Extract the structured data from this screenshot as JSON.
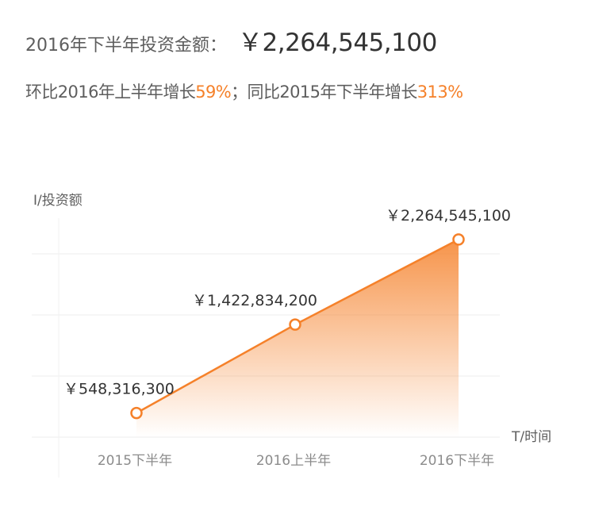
{
  "headline": {
    "label": "2016年下半年投资金额：",
    "value": "￥2,264,545,100"
  },
  "subline": {
    "qoq_prefix": "环比2016年上半年增长",
    "qoq_value": "59%",
    "separator": "；",
    "yoy_prefix": "同比2015年下半年增长",
    "yoy_value": "313%"
  },
  "colors": {
    "accent": "#f5812a",
    "text": "#5e5e5e",
    "grid": "#eeeeee"
  },
  "chart_data": {
    "type": "area",
    "categories": [
      "2015下半年",
      "2016上半年",
      "2016下半年"
    ],
    "values": [
      548316300,
      1422834200,
      2264545100
    ],
    "data_labels": [
      "￥548,316,300",
      "￥1,422,834,200",
      "￥2,264,545,100"
    ],
    "ylabel": "I/投资额",
    "xlabel": "T/时间",
    "ylim": [
      310000000,
      2750000000
    ],
    "grid": true,
    "legend": "none"
  }
}
